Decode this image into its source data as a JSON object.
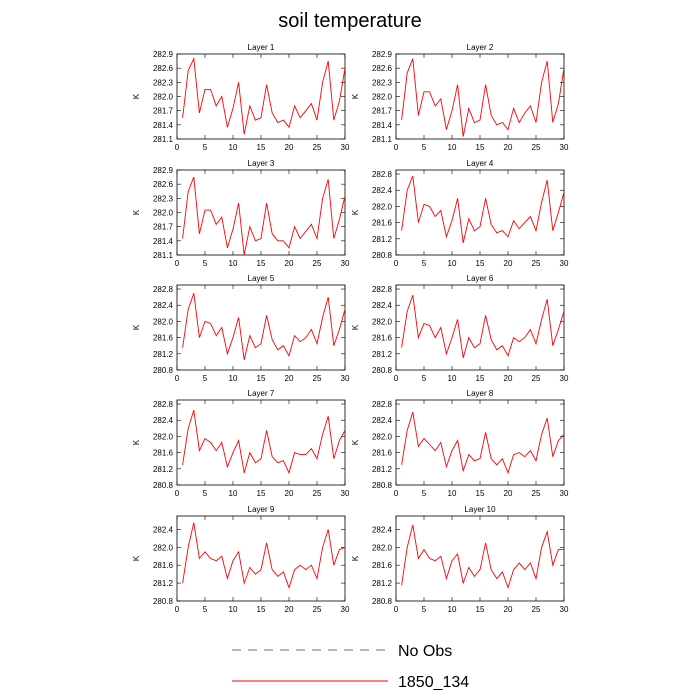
{
  "title": "soil temperature",
  "legend": [
    {
      "label": "No Obs",
      "style": "dashed",
      "color": "#6a6aa8"
    },
    {
      "label": "1850_134",
      "style": "solid",
      "color": "#ff0000"
    }
  ],
  "colors": {
    "series": "#ff0000",
    "obs": "#6a6aa8",
    "axis": "#000000"
  },
  "chart_data": [
    {
      "type": "line",
      "title": "Layer 1",
      "ylabel": "K",
      "xlim": [
        0,
        30
      ],
      "ylim": [
        281.1,
        282.9
      ],
      "xticks": [
        0,
        5,
        10,
        15,
        20,
        25,
        30
      ],
      "yticks": [
        281.1,
        281.4,
        281.7,
        282.0,
        282.3,
        282.6,
        282.9
      ],
      "ytick_labels": [
        "281.1",
        "281.4",
        "281.7",
        "282.0",
        "282.3",
        "282.6",
        "282.9"
      ],
      "x": [
        1,
        2,
        3,
        4,
        5,
        6,
        7,
        8,
        9,
        10,
        11,
        12,
        13,
        14,
        15,
        16,
        17,
        18,
        19,
        20,
        21,
        22,
        23,
        24,
        25,
        26,
        27,
        28,
        29,
        30
      ],
      "series": [
        {
          "name": "1850_134",
          "values": [
            281.55,
            282.55,
            282.8,
            281.65,
            282.15,
            282.15,
            281.8,
            282.0,
            281.35,
            281.75,
            282.3,
            281.2,
            281.8,
            281.5,
            281.55,
            282.25,
            281.65,
            281.45,
            281.5,
            281.35,
            281.8,
            281.55,
            281.7,
            281.85,
            281.5,
            282.3,
            282.75,
            281.5,
            281.9,
            282.6
          ]
        }
      ]
    },
    {
      "type": "line",
      "title": "Layer 2",
      "ylabel": "K",
      "xlim": [
        0,
        30
      ],
      "ylim": [
        281.1,
        282.9
      ],
      "xticks": [
        0,
        5,
        10,
        15,
        20,
        25,
        30
      ],
      "yticks": [
        281.1,
        281.4,
        281.7,
        282.0,
        282.3,
        282.6,
        282.9
      ],
      "ytick_labels": [
        "281.1",
        "281.4",
        "281.7",
        "282.0",
        "282.3",
        "282.6",
        "282.9"
      ],
      "x": [
        1,
        2,
        3,
        4,
        5,
        6,
        7,
        8,
        9,
        10,
        11,
        12,
        13,
        14,
        15,
        16,
        17,
        18,
        19,
        20,
        21,
        22,
        23,
        24,
        25,
        26,
        27,
        28,
        29,
        30
      ],
      "series": [
        {
          "name": "1850_134",
          "values": [
            281.5,
            282.5,
            282.8,
            281.6,
            282.1,
            282.1,
            281.8,
            281.95,
            281.3,
            281.7,
            282.25,
            281.15,
            281.75,
            281.45,
            281.5,
            282.25,
            281.6,
            281.4,
            281.45,
            281.3,
            281.75,
            281.45,
            281.65,
            281.8,
            281.45,
            282.3,
            282.75,
            281.45,
            281.85,
            282.6
          ]
        }
      ]
    },
    {
      "type": "line",
      "title": "Layer 3",
      "ylabel": "K",
      "xlim": [
        0,
        30
      ],
      "ylim": [
        281.1,
        282.9
      ],
      "xticks": [
        0,
        5,
        10,
        15,
        20,
        25,
        30
      ],
      "yticks": [
        281.1,
        281.4,
        281.7,
        282.0,
        282.3,
        282.6,
        282.9
      ],
      "ytick_labels": [
        "281.1",
        "281.4",
        "281.7",
        "282.0",
        "282.3",
        "282.6",
        "282.9"
      ],
      "x": [
        1,
        2,
        3,
        4,
        5,
        6,
        7,
        8,
        9,
        10,
        11,
        12,
        13,
        14,
        15,
        16,
        17,
        18,
        19,
        20,
        21,
        22,
        23,
        24,
        25,
        26,
        27,
        28,
        29,
        30
      ],
      "series": [
        {
          "name": "1850_134",
          "values": [
            281.45,
            282.45,
            282.75,
            281.55,
            282.05,
            282.05,
            281.75,
            281.9,
            281.25,
            281.65,
            282.2,
            281.1,
            281.7,
            281.4,
            281.45,
            282.2,
            281.55,
            281.4,
            281.4,
            281.25,
            281.7,
            281.45,
            281.6,
            281.75,
            281.45,
            282.3,
            282.7,
            281.45,
            281.85,
            282.35
          ]
        }
      ]
    },
    {
      "type": "line",
      "title": "Layer 4",
      "ylabel": "K",
      "xlim": [
        0,
        30
      ],
      "ylim": [
        280.8,
        282.9
      ],
      "xticks": [
        0,
        5,
        10,
        15,
        20,
        25,
        30
      ],
      "yticks": [
        280.8,
        281.2,
        281.6,
        282.0,
        282.4,
        282.8
      ],
      "ytick_labels": [
        "280.8",
        "281.2",
        "281.6",
        "282.0",
        "282.4",
        "282.8"
      ],
      "x": [
        1,
        2,
        3,
        4,
        5,
        6,
        7,
        8,
        9,
        10,
        11,
        12,
        13,
        14,
        15,
        16,
        17,
        18,
        19,
        20,
        21,
        22,
        23,
        24,
        25,
        26,
        27,
        28,
        29,
        30
      ],
      "series": [
        {
          "name": "1850_134",
          "values": [
            281.4,
            282.4,
            282.75,
            281.6,
            282.05,
            282.0,
            281.75,
            281.9,
            281.25,
            281.65,
            282.2,
            281.1,
            281.7,
            281.4,
            281.5,
            282.2,
            281.55,
            281.35,
            281.4,
            281.25,
            281.65,
            281.45,
            281.6,
            281.75,
            281.4,
            282.1,
            282.65,
            281.4,
            281.85,
            282.35
          ]
        }
      ]
    },
    {
      "type": "line",
      "title": "Layer 5",
      "ylabel": "K",
      "xlim": [
        0,
        30
      ],
      "ylim": [
        280.8,
        282.9
      ],
      "xticks": [
        0,
        5,
        10,
        15,
        20,
        25,
        30
      ],
      "yticks": [
        280.8,
        281.2,
        281.6,
        282.0,
        282.4,
        282.8
      ],
      "ytick_labels": [
        "280.8",
        "281.2",
        "281.6",
        "282.0",
        "282.4",
        "282.8"
      ],
      "x": [
        1,
        2,
        3,
        4,
        5,
        6,
        7,
        8,
        9,
        10,
        11,
        12,
        13,
        14,
        15,
        16,
        17,
        18,
        19,
        20,
        21,
        22,
        23,
        24,
        25,
        26,
        27,
        28,
        29,
        30
      ],
      "series": [
        {
          "name": "1850_134",
          "values": [
            281.35,
            282.3,
            282.7,
            281.6,
            282.0,
            281.95,
            281.65,
            281.85,
            281.2,
            281.6,
            282.1,
            281.05,
            281.65,
            281.35,
            281.45,
            282.15,
            281.55,
            281.3,
            281.4,
            281.15,
            281.65,
            281.5,
            281.6,
            281.8,
            281.45,
            282.1,
            282.6,
            281.4,
            281.8,
            282.3
          ]
        }
      ]
    },
    {
      "type": "line",
      "title": "Layer 6",
      "ylabel": "K",
      "xlim": [
        0,
        30
      ],
      "ylim": [
        280.8,
        282.9
      ],
      "xticks": [
        0,
        5,
        10,
        15,
        20,
        25,
        30
      ],
      "yticks": [
        280.8,
        281.2,
        281.6,
        282.0,
        282.4,
        282.8
      ],
      "ytick_labels": [
        "280.8",
        "281.2",
        "281.6",
        "282.0",
        "282.4",
        "282.8"
      ],
      "x": [
        1,
        2,
        3,
        4,
        5,
        6,
        7,
        8,
        9,
        10,
        11,
        12,
        13,
        14,
        15,
        16,
        17,
        18,
        19,
        20,
        21,
        22,
        23,
        24,
        25,
        26,
        27,
        28,
        29,
        30
      ],
      "series": [
        {
          "name": "1850_134",
          "values": [
            281.35,
            282.25,
            282.65,
            281.6,
            281.95,
            281.9,
            281.6,
            281.85,
            281.2,
            281.6,
            282.05,
            281.1,
            281.6,
            281.35,
            281.45,
            282.15,
            281.55,
            281.3,
            281.4,
            281.15,
            281.6,
            281.5,
            281.6,
            281.8,
            281.45,
            282.05,
            282.55,
            281.4,
            281.8,
            282.25
          ]
        }
      ]
    },
    {
      "type": "line",
      "title": "Layer 7",
      "ylabel": "K",
      "xlim": [
        0,
        30
      ],
      "ylim": [
        280.8,
        282.9
      ],
      "xticks": [
        0,
        5,
        10,
        15,
        20,
        25,
        30
      ],
      "yticks": [
        280.8,
        281.2,
        281.6,
        282.0,
        282.4,
        282.8
      ],
      "ytick_labels": [
        "280.8",
        "281.2",
        "281.6",
        "282.0",
        "282.4",
        "282.8"
      ],
      "x": [
        1,
        2,
        3,
        4,
        5,
        6,
        7,
        8,
        9,
        10,
        11,
        12,
        13,
        14,
        15,
        16,
        17,
        18,
        19,
        20,
        21,
        22,
        23,
        24,
        25,
        26,
        27,
        28,
        29,
        30
      ],
      "series": [
        {
          "name": "1850_134",
          "values": [
            281.3,
            282.2,
            282.65,
            281.65,
            281.95,
            281.85,
            281.65,
            281.85,
            281.25,
            281.6,
            281.9,
            281.1,
            281.6,
            281.35,
            281.45,
            282.15,
            281.5,
            281.35,
            281.4,
            281.1,
            281.6,
            281.55,
            281.55,
            281.7,
            281.45,
            282.05,
            282.5,
            281.45,
            281.9,
            282.15
          ]
        }
      ]
    },
    {
      "type": "line",
      "title": "Layer 8",
      "ylabel": "K",
      "xlim": [
        0,
        30
      ],
      "ylim": [
        280.8,
        282.9
      ],
      "xticks": [
        0,
        5,
        10,
        15,
        20,
        25,
        30
      ],
      "yticks": [
        280.8,
        281.2,
        281.6,
        282.0,
        282.4,
        282.8
      ],
      "ytick_labels": [
        "280.8",
        "281.2",
        "281.6",
        "282.0",
        "282.4",
        "282.8"
      ],
      "x": [
        1,
        2,
        3,
        4,
        5,
        6,
        7,
        8,
        9,
        10,
        11,
        12,
        13,
        14,
        15,
        16,
        17,
        18,
        19,
        20,
        21,
        22,
        23,
        24,
        25,
        26,
        27,
        28,
        29,
        30
      ],
      "series": [
        {
          "name": "1850_134",
          "values": [
            281.3,
            282.15,
            282.6,
            281.75,
            281.95,
            281.8,
            281.65,
            281.85,
            281.25,
            281.65,
            281.9,
            281.15,
            281.55,
            281.4,
            281.45,
            282.1,
            281.45,
            281.3,
            281.45,
            281.1,
            281.55,
            281.6,
            281.5,
            281.65,
            281.4,
            282.05,
            282.45,
            281.5,
            281.9,
            282.05
          ]
        }
      ]
    },
    {
      "type": "line",
      "title": "Layer 9",
      "ylabel": "K",
      "xlim": [
        0,
        30
      ],
      "ylim": [
        280.8,
        282.7
      ],
      "xticks": [
        0,
        5,
        10,
        15,
        20,
        25,
        30
      ],
      "yticks": [
        280.8,
        281.2,
        281.6,
        282.0,
        282.4
      ],
      "ytick_labels": [
        "280.8",
        "281.2",
        "281.6",
        "282.0",
        "282.4"
      ],
      "x": [
        1,
        2,
        3,
        4,
        5,
        6,
        7,
        8,
        9,
        10,
        11,
        12,
        13,
        14,
        15,
        16,
        17,
        18,
        19,
        20,
        21,
        22,
        23,
        24,
        25,
        26,
        27,
        28,
        29,
        30
      ],
      "series": [
        {
          "name": "1850_134",
          "values": [
            281.2,
            282.0,
            282.55,
            281.75,
            281.9,
            281.75,
            281.7,
            281.8,
            281.3,
            281.7,
            281.9,
            281.2,
            281.55,
            281.4,
            281.5,
            282.1,
            281.5,
            281.35,
            281.45,
            281.1,
            281.5,
            281.6,
            281.5,
            281.6,
            281.3,
            282.0,
            282.4,
            281.6,
            281.95,
            282.0
          ]
        }
      ]
    },
    {
      "type": "line",
      "title": "Layer 10",
      "ylabel": "K",
      "xlim": [
        0,
        30
      ],
      "ylim": [
        280.8,
        282.7
      ],
      "xticks": [
        0,
        5,
        10,
        15,
        20,
        25,
        30
      ],
      "yticks": [
        280.8,
        281.2,
        281.6,
        282.0,
        282.4
      ],
      "ytick_labels": [
        "280.8",
        "281.2",
        "281.6",
        "282.0",
        "282.4"
      ],
      "x": [
        1,
        2,
        3,
        4,
        5,
        6,
        7,
        8,
        9,
        10,
        11,
        12,
        13,
        14,
        15,
        16,
        17,
        18,
        19,
        20,
        21,
        22,
        23,
        24,
        25,
        26,
        27,
        28,
        29,
        30
      ],
      "series": [
        {
          "name": "1850_134",
          "values": [
            281.15,
            282.0,
            282.5,
            281.75,
            281.95,
            281.75,
            281.7,
            281.8,
            281.3,
            281.7,
            281.85,
            281.2,
            281.55,
            281.35,
            281.5,
            282.1,
            281.5,
            281.3,
            281.45,
            281.1,
            281.5,
            281.65,
            281.5,
            281.65,
            281.3,
            282.0,
            282.35,
            281.6,
            281.95,
            281.95
          ]
        }
      ]
    }
  ]
}
